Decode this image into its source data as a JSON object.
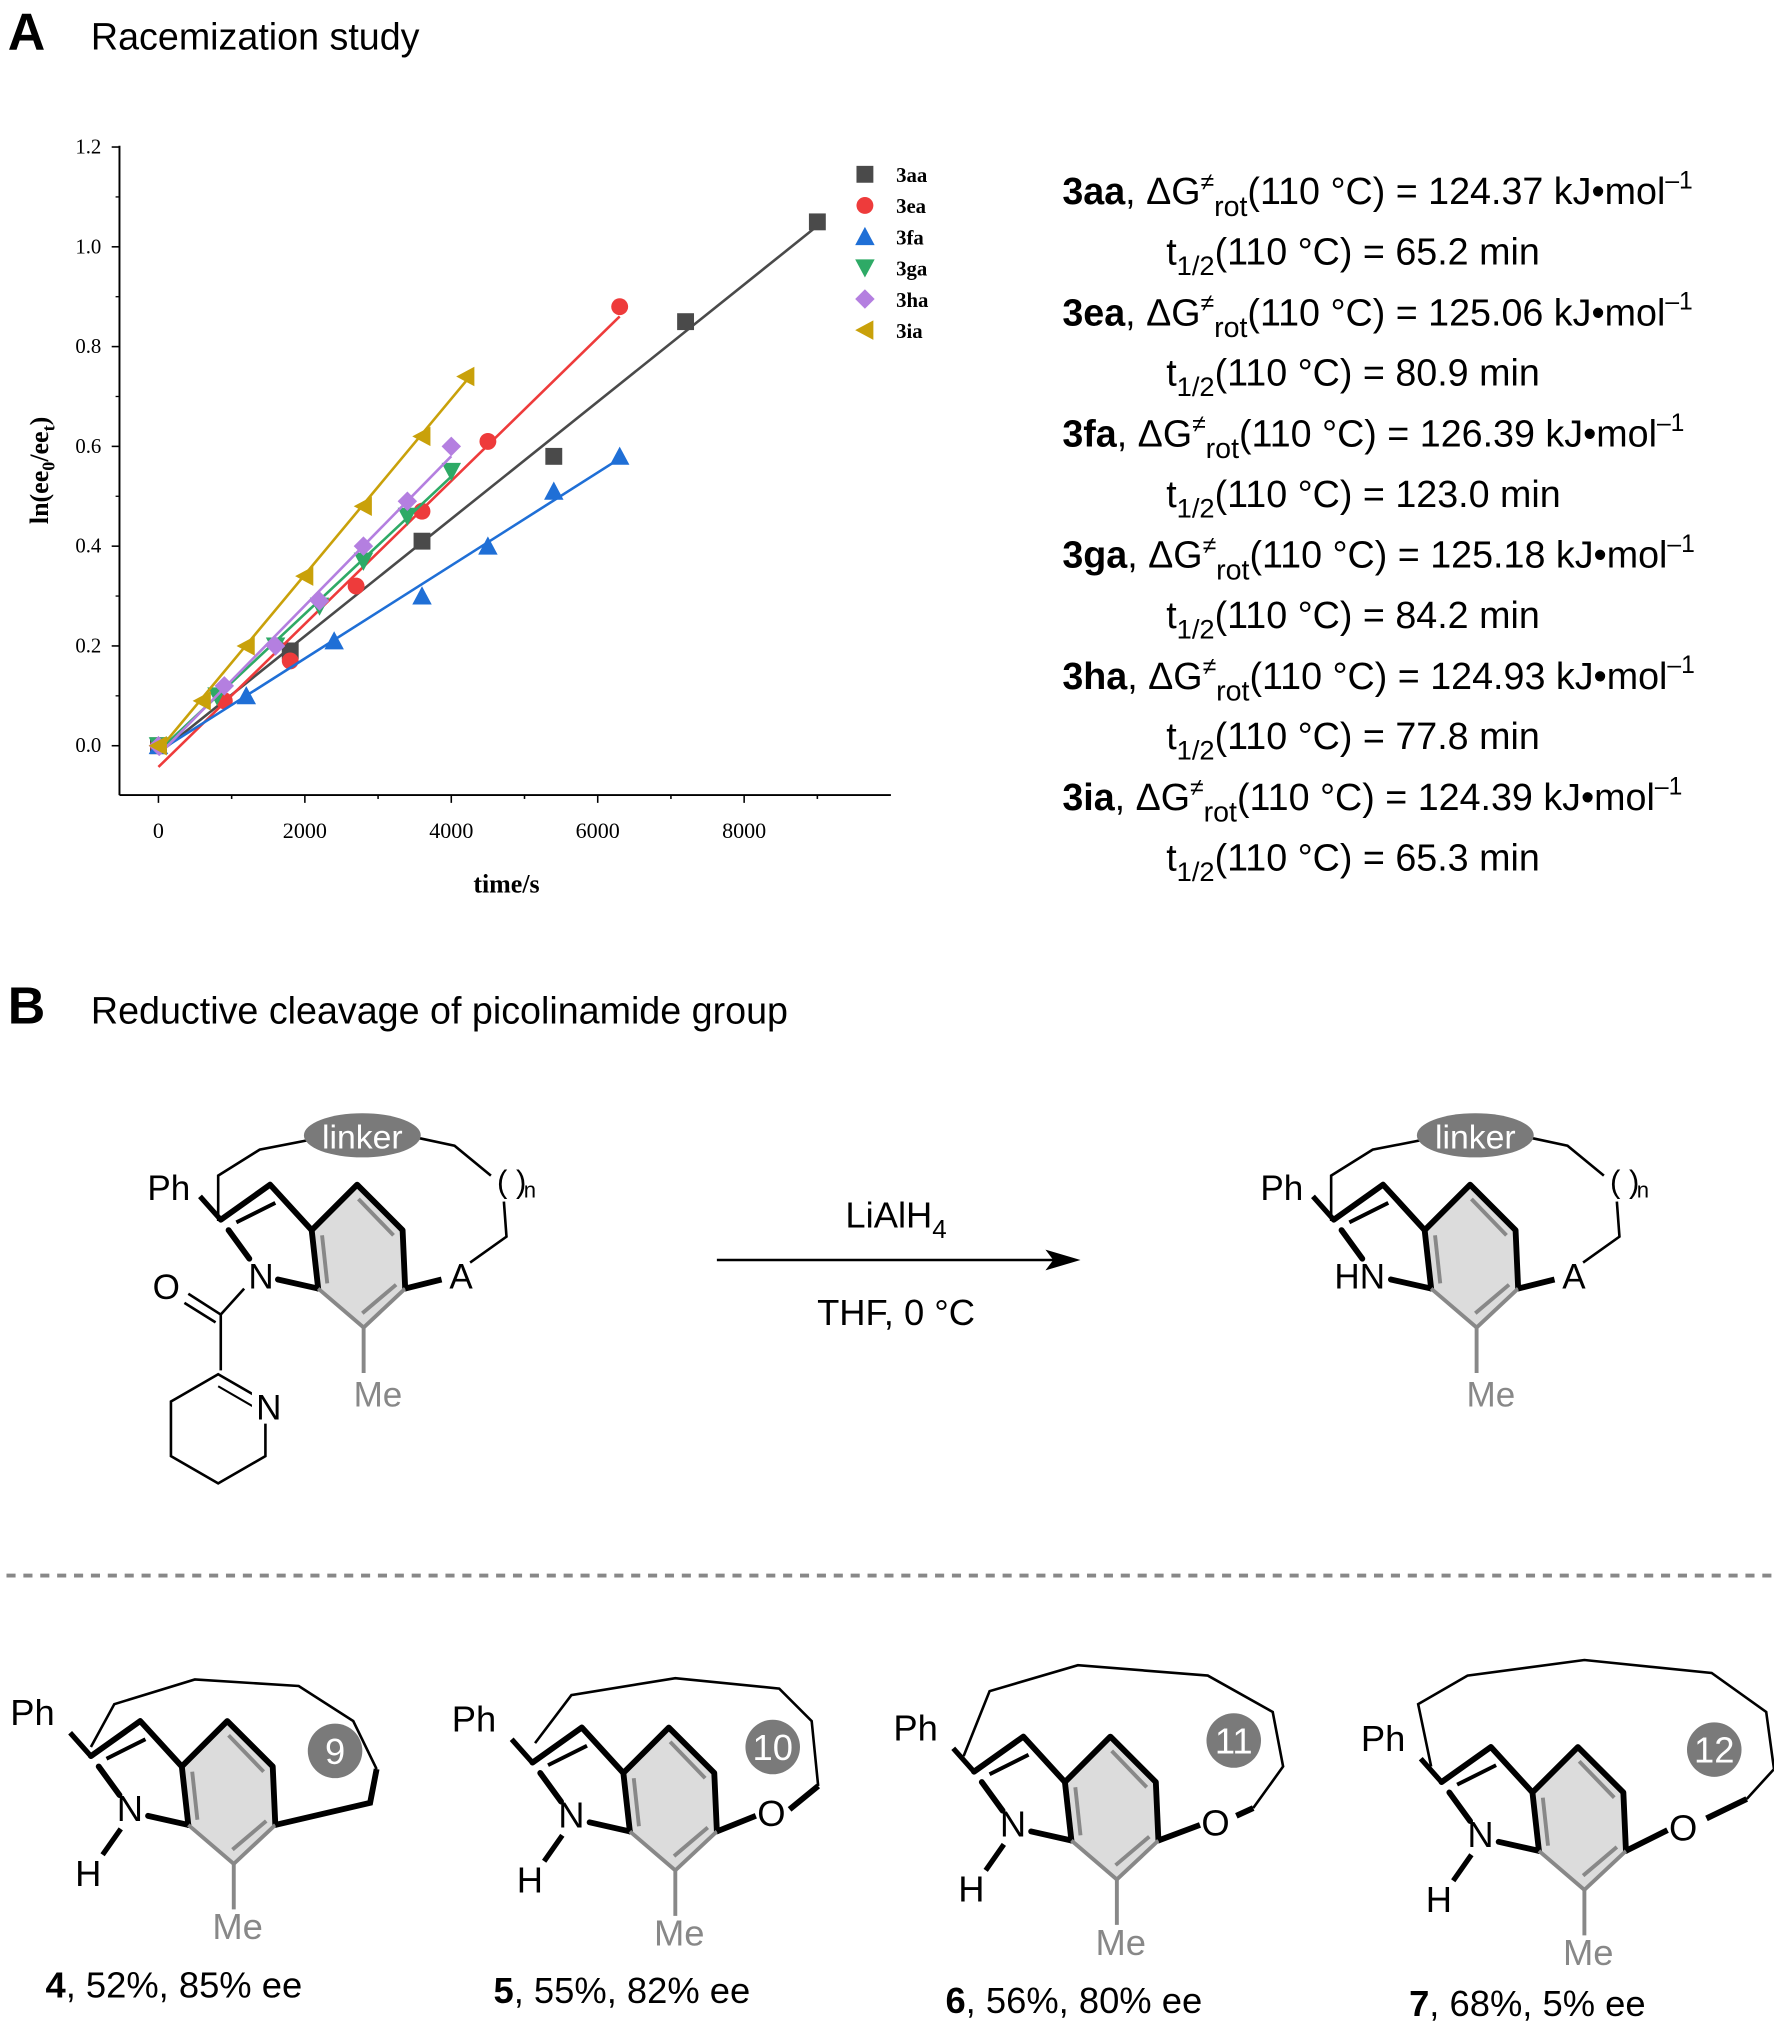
{
  "panel_a": {
    "letter": "A",
    "title": "Racemization study"
  },
  "panel_b": {
    "letter": "B",
    "title": "Reductive cleavage of picolinamide group"
  },
  "chart_data": {
    "type": "scatter",
    "xlabel": "time/s",
    "ylabel_main": "ln(ee",
    "ylabel_sub0": "0",
    "ylabel_mid": "/ee",
    "ylabel_subt": "t",
    "ylabel_end": ")",
    "xlim": [
      -500,
      10000
    ],
    "ylim": [
      -0.1,
      1.2
    ],
    "xticks": [
      0,
      2000,
      4000,
      6000,
      8000
    ],
    "yticks": [
      0.0,
      0.2,
      0.4,
      0.6,
      0.8,
      1.0,
      1.2
    ],
    "ytick_labels": [
      "0.0",
      "0.2",
      "0.4",
      "0.6",
      "0.8",
      "1.0",
      "1.2"
    ],
    "legend_position": "top-right",
    "fit": "linear",
    "series": [
      {
        "name": "3aa",
        "color": "#4a4a4a",
        "marker": "square",
        "x": [
          0,
          1800,
          3600,
          5400,
          7200,
          9000
        ],
        "y": [
          0,
          0.19,
          0.41,
          0.58,
          0.85,
          1.05
        ]
      },
      {
        "name": "3ea",
        "color": "#ee3b3b",
        "marker": "circle",
        "x": [
          0,
          900,
          1800,
          2700,
          3600,
          4500,
          6300
        ],
        "y": [
          0,
          0.09,
          0.17,
          0.32,
          0.47,
          0.61,
          0.88
        ]
      },
      {
        "name": "3fa",
        "color": "#1f6fd6",
        "marker": "triangle-up",
        "x": [
          0,
          1200,
          2400,
          3600,
          4500,
          5400,
          6300
        ],
        "y": [
          0,
          0.1,
          0.21,
          0.3,
          0.4,
          0.51,
          0.58
        ]
      },
      {
        "name": "3ga",
        "color": "#2eaa66",
        "marker": "triangle-down",
        "x": [
          0,
          800,
          1600,
          2200,
          2800,
          3400,
          4000
        ],
        "y": [
          0,
          0.1,
          0.2,
          0.28,
          0.37,
          0.46,
          0.55
        ]
      },
      {
        "name": "3ha",
        "color": "#b47fe0",
        "marker": "diamond",
        "x": [
          0,
          900,
          1600,
          2200,
          2800,
          3400,
          4000
        ],
        "y": [
          0,
          0.12,
          0.2,
          0.29,
          0.4,
          0.49,
          0.6
        ]
      },
      {
        "name": "3ia",
        "color": "#c9a10a",
        "marker": "triangle-left",
        "x": [
          0,
          600,
          1200,
          2000,
          2800,
          3600,
          4200
        ],
        "y": [
          0,
          0.09,
          0.2,
          0.34,
          0.48,
          0.62,
          0.74
        ]
      }
    ]
  },
  "energies": {
    "dg_symbol": "ΔG",
    "dg_sup": "≠",
    "dg_sub": "rot",
    "dg_temp": "(110 °C) = ",
    "unit": " kJ•mol",
    "unit_sup": "–1",
    "t_symbol": "t",
    "t_sub": "1/2",
    "t_temp": "(110 °C)  = ",
    "t_unit": " min",
    "rows": [
      {
        "name": "3aa",
        "dg": "124.37",
        "t_half": "65.2"
      },
      {
        "name": "3ea",
        "dg": "125.06",
        "t_half": "80.9"
      },
      {
        "name": "3fa",
        "dg": "126.39",
        "t_half": "123.0"
      },
      {
        "name": "3ga",
        "dg": "125.18",
        "t_half": "84.2"
      },
      {
        "name": "3ha",
        "dg": "124.93",
        "t_half": "77.8"
      },
      {
        "name": "3ia",
        "dg": "124.39",
        "t_half": "65.3"
      }
    ]
  },
  "scheme": {
    "linker": "linker",
    "ph": "Ph",
    "n": "N",
    "hn": "HN",
    "o": "O",
    "a": "A",
    "me": "Me",
    "n_sub": "n",
    "paren": "( )",
    "reagent": "LiAlH",
    "reagent_sub": "4",
    "conditions": "THF, 0 °C"
  },
  "products": [
    {
      "id": "4",
      "ring": "9",
      "rest": ", 52%, 85% ee"
    },
    {
      "id": "5",
      "ring": "10",
      "rest": ", 55%, 82% ee"
    },
    {
      "id": "6",
      "ring": "11",
      "rest": ", 56%, 80% ee"
    },
    {
      "id": "7",
      "ring": "12",
      "rest": ", 68%, 5% ee"
    }
  ],
  "product_labels": {
    "ph": "Ph",
    "n": "N",
    "h": "H",
    "o": "O",
    "me": "Me"
  }
}
